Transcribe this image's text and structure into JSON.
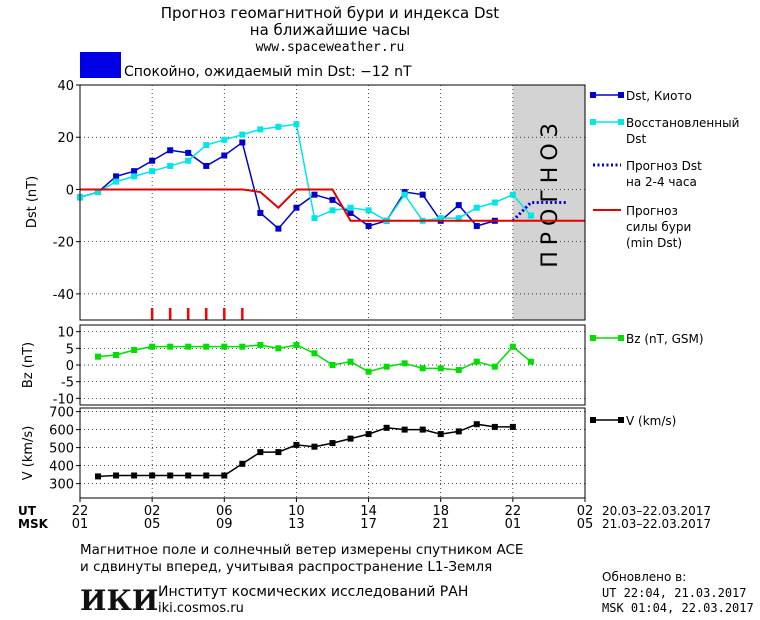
{
  "header": {
    "title_line1": "Прогноз геомагнитной бури и индекса Dst",
    "title_line2": "на ближайшие часы",
    "website": "www.spaceweather.ru",
    "status_text": "Спокойно, ожидаемый min Dst: −12 nT",
    "status_color": "#0000e6"
  },
  "time_axis": {
    "ut_label": "UT",
    "msk_label": "MSK",
    "ut_ticks": [
      "22",
      "02",
      "06",
      "10",
      "14",
      "18",
      "22",
      "02"
    ],
    "msk_ticks": [
      "01",
      "05",
      "09",
      "13",
      "17",
      "21",
      "01",
      "05"
    ],
    "ut_range_text": "20.03–22.03.2017",
    "msk_range_text": "21.03–22.03.2017",
    "x_min": 0,
    "x_max": 28
  },
  "chart_data": [
    {
      "type": "line",
      "ylabel": "Dst (nT)",
      "ylim": [
        -50,
        40
      ],
      "yticks": [
        40,
        20,
        0,
        -20,
        -40
      ],
      "forecast_region": {
        "x_start": 24,
        "x_end": 28,
        "label": "ПРОГНОЗ",
        "color": "#d3d3d3"
      },
      "storm_markers": {
        "x": [
          4,
          5,
          6,
          7,
          8,
          9
        ],
        "color": "#ff0000"
      },
      "series": [
        {
          "name": "Dst, Киото",
          "color": "#0000cc",
          "marker": "square",
          "x": [
            0,
            1,
            2,
            3,
            4,
            5,
            6,
            7,
            8,
            9,
            10,
            11,
            12,
            13,
            14,
            15,
            16,
            17,
            18,
            19,
            20,
            21,
            22,
            23,
            24
          ],
          "y": [
            -3,
            -1,
            5,
            7,
            11,
            15,
            14,
            9,
            13,
            18,
            -9,
            -15,
            -7,
            -2,
            -4,
            -9,
            -14,
            -12,
            -1,
            -2,
            -12,
            -6,
            -14,
            -12,
            null
          ]
        },
        {
          "name": "Восстановленный Dst",
          "color": "#00e5e5",
          "marker": "square",
          "x": [
            0,
            1,
            2,
            3,
            4,
            5,
            6,
            7,
            8,
            9,
            10,
            11,
            12,
            13,
            14,
            15,
            16,
            17,
            18,
            19,
            20,
            21,
            22,
            23,
            24,
            25
          ],
          "y": [
            -3,
            -1,
            3,
            5,
            7,
            9,
            11,
            17,
            19,
            21,
            23,
            24,
            25,
            -11,
            -8,
            -7,
            -8,
            -12,
            -2,
            -12,
            -11,
            -11,
            -7,
            -5,
            -2,
            -10
          ]
        },
        {
          "name": "Прогноз Dst на 2-4 часа",
          "color": "#0000cc",
          "style": "dotted",
          "x": [
            24,
            25,
            26,
            27
          ],
          "y": [
            -12,
            -5,
            -5,
            -5
          ]
        },
        {
          "name": "Прогноз силы бури (min Dst)",
          "color": "#e00000",
          "style": "step",
          "x": [
            0,
            9,
            10,
            11,
            12,
            13,
            14,
            15,
            28
          ],
          "y": [
            0,
            0,
            -1,
            -7,
            0,
            0,
            0,
            -12,
            -12
          ]
        }
      ],
      "legend": [
        {
          "line1": "Dst, Киото",
          "line2": "",
          "line3": ""
        },
        {
          "line1": "Восстановленный",
          "line2": "Dst",
          "line3": ""
        },
        {
          "line1": "Прогноз Dst",
          "line2": "на 2-4 часа",
          "line3": ""
        },
        {
          "line1": "Прогноз",
          "line2": "силы бури",
          "line3": "(min Dst)"
        }
      ]
    },
    {
      "type": "line",
      "ylabel": "Bz (nT)",
      "ylim": [
        -12,
        12
      ],
      "yticks": [
        10,
        5,
        0,
        -5,
        -10
      ],
      "series": [
        {
          "name": "Bz (nT, GSM)",
          "color": "#00dd00",
          "marker": "square",
          "x": [
            1,
            2,
            3,
            4,
            5,
            6,
            7,
            8,
            9,
            10,
            11,
            12,
            13,
            14,
            15,
            16,
            17,
            18,
            19,
            20,
            21,
            22,
            23,
            24,
            25
          ],
          "y": [
            2.5,
            3,
            4.5,
            5.5,
            5.5,
            5.5,
            5.5,
            5.5,
            5.5,
            6,
            5,
            6,
            3.5,
            0,
            1,
            -2,
            -0.5,
            0.5,
            -1,
            -1,
            -1.5,
            1,
            -0.5,
            5.5,
            1
          ]
        }
      ],
      "legend": [
        {
          "line1": "Bz (nT, GSM)"
        }
      ]
    },
    {
      "type": "line",
      "ylabel": "V (km/s)",
      "ylim": [
        220,
        720
      ],
      "yticks": [
        700,
        600,
        500,
        400,
        300
      ],
      "series": [
        {
          "name": "V (km/s)",
          "color": "#000000",
          "marker": "square",
          "x": [
            1,
            2,
            3,
            4,
            5,
            6,
            7,
            8,
            9,
            10,
            11,
            12,
            13,
            14,
            15,
            16,
            17,
            18,
            19,
            20,
            21,
            22,
            23,
            24,
            25
          ],
          "y": [
            340,
            345,
            345,
            345,
            345,
            345,
            345,
            345,
            410,
            475,
            475,
            515,
            505,
            525,
            550,
            575,
            610,
            600,
            600,
            575,
            590,
            630,
            615,
            615,
            null
          ]
        }
      ],
      "legend": [
        {
          "line1": "V (km/s)"
        }
      ]
    }
  ],
  "footer": {
    "description_line1": "Магнитное поле и солнечный ветер измерены спутником ACE",
    "description_line2": "и сдвинуты вперед, учитывая распространение L1-Земля",
    "institute_name": "Институт космических исследований РАН",
    "institute_site": "iki.cosmos.ru",
    "logo_text": "ИКИ",
    "updated_label": "Обновлено в:",
    "updated_ut": "UT   22:04, 21.03.2017",
    "updated_msk": "MSK 01:04, 22.03.2017"
  }
}
